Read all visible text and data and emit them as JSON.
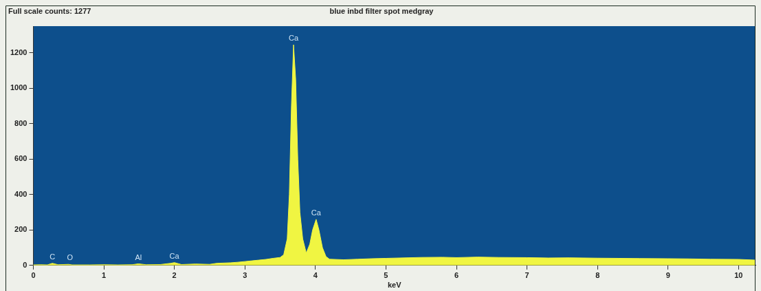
{
  "chart_data": {
    "type": "area",
    "title": "blue inbd filter spot medgray",
    "xlabel": "keV",
    "annotations": [
      "Full scale counts: 1277",
      {
        "text": "C",
        "x": 0.27,
        "y": 12
      },
      {
        "text": "O",
        "x": 0.52,
        "y": 6
      },
      {
        "text": "Al",
        "x": 1.49,
        "y": 9
      },
      {
        "text": "Ca",
        "x": 2.0,
        "y": 16
      },
      {
        "text": "Ca",
        "x": 3.69,
        "y": 1245
      },
      {
        "text": "Ca",
        "x": 4.01,
        "y": 260
      }
    ],
    "x": [
      0,
      0.1,
      0.2,
      0.27,
      0.35,
      0.5,
      0.55,
      0.8,
      1.0,
      1.2,
      1.4,
      1.49,
      1.6,
      1.8,
      1.95,
      2.0,
      2.1,
      2.3,
      2.5,
      2.6,
      2.8,
      2.9,
      3.0,
      3.1,
      3.2,
      3.3,
      3.4,
      3.5,
      3.55,
      3.6,
      3.63,
      3.66,
      3.69,
      3.72,
      3.75,
      3.78,
      3.82,
      3.87,
      3.92,
      3.96,
      4.01,
      4.05,
      4.1,
      4.15,
      4.2,
      4.4,
      4.6,
      4.8,
      5.0,
      5.2,
      5.5,
      5.8,
      6.0,
      6.3,
      6.6,
      7.0,
      7.3,
      7.6,
      8.0,
      8.3,
      8.6,
      9.0,
      9.3,
      9.6,
      10.0,
      10.24
    ],
    "series": [
      {
        "color": "#f0f542",
        "values": [
          3,
          4,
          3,
          12,
          4,
          6,
          3,
          3,
          4,
          3,
          4,
          9,
          4,
          5,
          12,
          16,
          5,
          8,
          6,
          12,
          15,
          18,
          22,
          26,
          30,
          34,
          40,
          45,
          60,
          150,
          400,
          900,
          1245,
          1050,
          600,
          300,
          150,
          70,
          120,
          200,
          260,
          200,
          100,
          50,
          35,
          32,
          35,
          38,
          40,
          42,
          45,
          46,
          44,
          47,
          45,
          44,
          42,
          43,
          41,
          40,
          39,
          38,
          37,
          35,
          34,
          30
        ]
      }
    ],
    "xlim": [
      0,
      10.24
    ],
    "xticks": [
      0,
      1,
      2,
      3,
      4,
      5,
      6,
      7,
      8,
      9,
      10
    ],
    "ylim": [
      0,
      1350
    ],
    "yticks": [
      0,
      200,
      400,
      600,
      800,
      1000,
      1200
    ],
    "grid": false,
    "legend": false
  }
}
